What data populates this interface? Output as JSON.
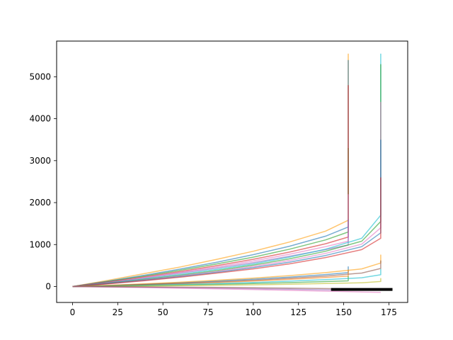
{
  "chart_data": {
    "type": "line",
    "title": "",
    "xlabel": "",
    "ylabel": "",
    "xlim": [
      -8.8,
      185.4
    ],
    "ylim": [
      -380,
      5850
    ],
    "grid": false,
    "legend": "none",
    "x_ticks": [
      0,
      25,
      50,
      75,
      100,
      125,
      150,
      175
    ],
    "y_ticks": [
      0,
      1000,
      2000,
      3000,
      4000,
      5000
    ],
    "x_tick_labels": [
      "0",
      "25",
      "50",
      "75",
      "100",
      "125",
      "150",
      "175"
    ],
    "y_tick_labels": [
      "0",
      "1000",
      "2000",
      "3000",
      "4000",
      "5000"
    ],
    "series": [
      {
        "x": [
          0,
          20,
          40,
          60,
          80,
          100,
          120,
          140,
          152.5,
          152.5
        ],
        "y": [
          0,
          150,
          310,
          470,
          650,
          840,
          1060,
          1320,
          1580,
          5550
        ],
        "color": "#ff9f0e"
      },
      {
        "x": [
          0,
          20,
          40,
          60,
          80,
          100,
          120,
          140,
          152.5,
          152.5
        ],
        "y": [
          0,
          130,
          270,
          420,
          580,
          760,
          960,
          1200,
          1420,
          5400
        ],
        "color": "#1f77b4"
      },
      {
        "x": [
          0,
          20,
          40,
          60,
          80,
          100,
          120,
          140,
          152.5,
          152.5
        ],
        "y": [
          0,
          120,
          250,
          390,
          540,
          700,
          890,
          1110,
          1300,
          3300
        ],
        "color": "#2ca02c"
      },
      {
        "x": [
          0,
          20,
          40,
          60,
          80,
          100,
          120,
          140,
          152.5,
          152.5
        ],
        "y": [
          0,
          110,
          230,
          360,
          500,
          650,
          820,
          1020,
          1180,
          4800
        ],
        "color": "#d62728"
      },
      {
        "x": [
          0,
          20,
          40,
          60,
          80,
          100,
          120,
          140,
          152.5,
          152.5
        ],
        "y": [
          0,
          100,
          215,
          340,
          470,
          610,
          770,
          950,
          1080,
          2200
        ],
        "color": "#e377c2"
      },
      {
        "x": [
          0,
          20,
          40,
          60,
          80,
          100,
          120,
          140,
          152.5,
          152.5
        ],
        "y": [
          0,
          95,
          200,
          320,
          440,
          570,
          720,
          880,
          990,
          1600
        ],
        "color": "#9467bd"
      },
      {
        "x": [
          0,
          20,
          40,
          60,
          80,
          100,
          120,
          140,
          160,
          170.5,
          170.5
        ],
        "y": [
          0,
          85,
          180,
          290,
          410,
          540,
          700,
          890,
          1150,
          1700,
          5550
        ],
        "color": "#17becf"
      },
      {
        "x": [
          0,
          20,
          40,
          60,
          80,
          100,
          120,
          140,
          160,
          170.5,
          170.5
        ],
        "y": [
          0,
          80,
          170,
          270,
          380,
          510,
          660,
          840,
          1080,
          1550,
          5300
        ],
        "color": "#2ca02c"
      },
      {
        "x": [
          0,
          20,
          40,
          60,
          80,
          100,
          120,
          140,
          160,
          170.5,
          170.5
        ],
        "y": [
          0,
          75,
          160,
          255,
          360,
          480,
          620,
          790,
          1010,
          1400,
          4400
        ],
        "color": "#e377c2"
      },
      {
        "x": [
          0,
          20,
          40,
          60,
          80,
          100,
          120,
          140,
          160,
          170.5,
          170.5
        ],
        "y": [
          0,
          70,
          150,
          240,
          340,
          450,
          580,
          740,
          950,
          1280,
          3500
        ],
        "color": "#1f77b4"
      },
      {
        "x": [
          0,
          20,
          40,
          60,
          80,
          100,
          120,
          140,
          160,
          170.5,
          170.5
        ],
        "y": [
          0,
          65,
          140,
          225,
          320,
          420,
          540,
          690,
          880,
          1150,
          2600
        ],
        "color": "#d62728"
      },
      {
        "x": [
          0,
          20,
          40,
          60,
          80,
          100,
          120,
          140,
          152.5,
          152.5
        ],
        "y": [
          0,
          25,
          55,
          90,
          130,
          175,
          225,
          285,
          330,
          480
        ],
        "color": "#1f77b4"
      },
      {
        "x": [
          0,
          20,
          40,
          60,
          80,
          100,
          120,
          140,
          152.5,
          152.5
        ],
        "y": [
          0,
          18,
          40,
          65,
          95,
          130,
          170,
          215,
          250,
          400
        ],
        "color": "#ff7f0e"
      },
      {
        "x": [
          0,
          20,
          40,
          60,
          80,
          100,
          120,
          140,
          152.5,
          152.5
        ],
        "y": [
          0,
          10,
          22,
          36,
          52,
          70,
          92,
          118,
          135,
          250
        ],
        "color": "#2ca02c"
      },
      {
        "x": [
          0,
          20,
          40,
          60,
          80,
          100,
          120,
          140,
          160,
          170.5,
          170.5
        ],
        "y": [
          0,
          30,
          65,
          105,
          150,
          200,
          260,
          330,
          420,
          560,
          760
        ],
        "color": "#ff9f0e"
      },
      {
        "x": [
          0,
          20,
          40,
          60,
          80,
          100,
          120,
          140,
          160,
          170.5,
          170.5
        ],
        "y": [
          0,
          22,
          48,
          78,
          112,
          150,
          195,
          250,
          320,
          430,
          620
        ],
        "color": "#8c564b"
      },
      {
        "x": [
          0,
          20,
          40,
          60,
          80,
          100,
          120,
          140,
          160,
          170.5,
          170.5
        ],
        "y": [
          0,
          14,
          30,
          50,
          72,
          98,
          128,
          164,
          210,
          280,
          420
        ],
        "color": "#17becf"
      },
      {
        "x": [
          0,
          20,
          40,
          60,
          80,
          100,
          120,
          140,
          160,
          170.5,
          170.5
        ],
        "y": [
          0,
          6,
          13,
          21,
          30,
          41,
          54,
          70,
          90,
          120,
          200
        ],
        "color": "#bcbd22"
      },
      {
        "x": [
          0,
          20,
          40,
          60,
          80,
          100,
          120,
          140,
          152.5
        ],
        "y": [
          0,
          -8,
          -17,
          -27,
          -38,
          -50,
          -63,
          -78,
          -90
        ],
        "color": "#9467bd"
      },
      {
        "x": [
          0,
          20,
          40,
          60,
          80,
          100,
          120,
          140,
          160,
          170.5
        ],
        "y": [
          0,
          -12,
          -25,
          -40,
          -56,
          -73,
          -91,
          -110,
          -130,
          -140
        ],
        "color": "#e377c2"
      },
      {
        "x": [
          0,
          20,
          40,
          60,
          80,
          100,
          120,
          140,
          160,
          175
        ],
        "y": [
          0,
          -4,
          -9,
          -15,
          -22,
          -30,
          -39,
          -49,
          -60,
          -70
        ],
        "color": "#8c564b"
      },
      {
        "x": [
          143,
          177
        ],
        "y": [
          -70,
          -70
        ],
        "color": "#000000",
        "width": 4,
        "opacity": 1
      }
    ]
  }
}
